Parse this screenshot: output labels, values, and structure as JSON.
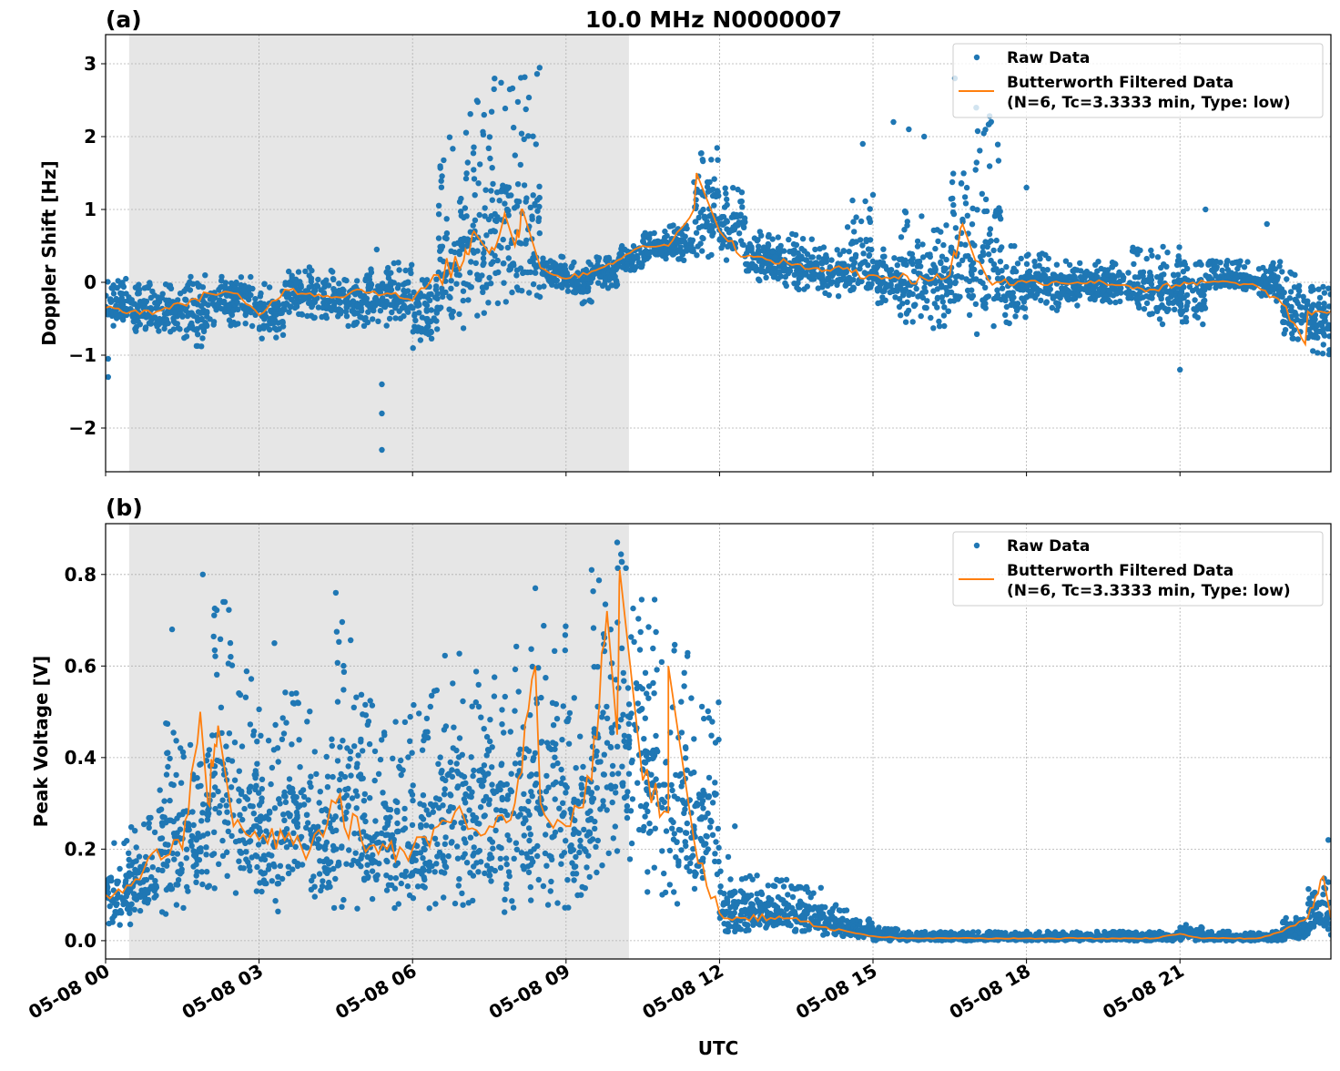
{
  "title": "10.0 MHz N0000007",
  "xlabel": "UTC",
  "x_tick_labels": [
    "05-08 00",
    "05-08 03",
    "05-08 06",
    "05-08 09",
    "05-08 12",
    "05-08 15",
    "05-08 18",
    "05-08 21"
  ],
  "x_ticks_hours": [
    0,
    3,
    6,
    9,
    12,
    15,
    18,
    21
  ],
  "xlim_hours": [
    0,
    23.95
  ],
  "shaded_region_hours": [
    0.46,
    10.23
  ],
  "colors": {
    "raw": "#1f77b4",
    "filtered": "#ff7f0e",
    "shade": "#e6e6e6",
    "grid": "#b0b0b0"
  },
  "legend": {
    "raw": "Raw Data",
    "filtered_line1": "Butterworth Filtered Data",
    "filtered_line2": "(N=6, Tc=3.3333 min, Type: low)",
    "placement": "top-right"
  },
  "chart_data": [
    {
      "type": "scatter",
      "panel_label": "(a)",
      "ylabel": "Doppler Shift [Hz]",
      "ylim": [
        -2.6,
        3.4
      ],
      "y_ticks": [
        -2,
        -1,
        0,
        1,
        2,
        3
      ],
      "y_tick_labels": [
        "−2",
        "−1",
        "0",
        "1",
        "2",
        "3"
      ],
      "grid": true,
      "x_hours": [
        0,
        0.5,
        1,
        1.5,
        2,
        2.5,
        3,
        3.5,
        4,
        4.5,
        5,
        5.5,
        6,
        6.5,
        7,
        7.5,
        8,
        8.5,
        9,
        9.5,
        10,
        10.5,
        11,
        11.5,
        12,
        12.5,
        13,
        13.5,
        14,
        14.5,
        15,
        15.5,
        16,
        16.5,
        17,
        17.5,
        18,
        18.5,
        19,
        19.5,
        20,
        20.5,
        21,
        21.5,
        22,
        22.5,
        23,
        23.5
      ],
      "filtered": [
        -0.35,
        -0.4,
        -0.4,
        -0.3,
        -0.15,
        -0.15,
        -0.45,
        -0.1,
        -0.15,
        -0.2,
        -0.1,
        -0.15,
        -0.25,
        0.1,
        0.3,
        0.4,
        0.5,
        0.2,
        0.05,
        0.15,
        0.3,
        0.5,
        0.5,
        1.0,
        0.7,
        0.35,
        0.3,
        0.25,
        0.15,
        0.2,
        0.1,
        0.05,
        0.05,
        0.1,
        0.3,
        0.0,
        0.0,
        0.0,
        0.0,
        0.0,
        -0.05,
        -0.1,
        -0.05,
        0.0,
        0.0,
        -0.05,
        -0.3,
        -0.4
      ],
      "raw_low": [
        -0.6,
        -0.7,
        -0.7,
        -0.9,
        -0.6,
        -0.6,
        -0.8,
        -0.5,
        -0.5,
        -0.6,
        -0.6,
        -0.5,
        -1.0,
        -0.9,
        -0.5,
        -0.3,
        -0.2,
        -0.1,
        -0.3,
        -0.1,
        0.15,
        0.3,
        0.3,
        0.3,
        0.3,
        0.0,
        -0.05,
        -0.1,
        -0.2,
        -0.3,
        -0.3,
        -0.6,
        -0.7,
        -0.5,
        -0.8,
        -0.6,
        -0.3,
        -0.4,
        -0.3,
        -0.3,
        -0.5,
        -0.6,
        -0.6,
        -0.1,
        -0.1,
        -0.3,
        -0.8,
        -1.0
      ],
      "raw_high": [
        0.05,
        0.0,
        0.0,
        0.1,
        0.1,
        0.15,
        0.0,
        0.25,
        0.2,
        0.1,
        0.25,
        0.3,
        0.1,
        2.0,
        2.5,
        3.0,
        3.0,
        0.4,
        0.3,
        0.35,
        0.5,
        0.7,
        0.8,
        1.9,
        1.3,
        0.8,
        0.7,
        0.6,
        0.5,
        1.3,
        0.5,
        1.0,
        0.8,
        1.5,
        2.4,
        0.5,
        0.4,
        0.3,
        0.3,
        0.3,
        0.5,
        0.5,
        0.3,
        0.3,
        0.3,
        0.3,
        0.2,
        0.0
      ],
      "filtered_peaks": [
        [
          7.2,
          0.7
        ],
        [
          7.8,
          0.95
        ],
        [
          8.15,
          1.0
        ],
        [
          11.55,
          1.5
        ],
        [
          16.75,
          0.8
        ],
        [
          23.45,
          -0.85
        ]
      ],
      "outliers": [
        [
          0.05,
          -1.3
        ],
        [
          0.05,
          -1.05
        ],
        [
          5.4,
          -1.4
        ],
        [
          5.4,
          -1.8
        ],
        [
          5.4,
          -2.3
        ],
        [
          5.3,
          0.45
        ],
        [
          14.8,
          1.9
        ],
        [
          15.4,
          2.2
        ],
        [
          15.7,
          2.1
        ],
        [
          16.0,
          2.0
        ],
        [
          21.0,
          -1.2
        ],
        [
          22.7,
          0.8
        ],
        [
          21.5,
          1.0
        ],
        [
          18.0,
          1.3
        ],
        [
          16.6,
          2.8
        ]
      ]
    },
    {
      "type": "scatter",
      "panel_label": "(b)",
      "ylabel": "Peak Voltage [V]",
      "ylim": [
        -0.04,
        0.911
      ],
      "y_ticks": [
        0,
        0.2,
        0.4,
        0.6,
        0.8
      ],
      "y_tick_labels": [
        "0.0",
        "0.2",
        "0.4",
        "0.6",
        "0.8"
      ],
      "grid": true,
      "x_hours": [
        0,
        0.5,
        1,
        1.5,
        2,
        2.5,
        3,
        3.5,
        4,
        4.5,
        5,
        5.5,
        6,
        6.5,
        7,
        7.5,
        8,
        8.5,
        9,
        9.5,
        10,
        10.5,
        11,
        11.5,
        12,
        12.5,
        13,
        13.5,
        14,
        14.5,
        15,
        15.5,
        16,
        16.5,
        17,
        17.5,
        18,
        18.5,
        19,
        19.5,
        20,
        20.5,
        21,
        21.5,
        22,
        22.5,
        23,
        23.5
      ],
      "filtered": [
        0.1,
        0.12,
        0.2,
        0.2,
        0.3,
        0.25,
        0.22,
        0.22,
        0.2,
        0.3,
        0.22,
        0.2,
        0.2,
        0.25,
        0.27,
        0.25,
        0.3,
        0.3,
        0.25,
        0.35,
        0.45,
        0.35,
        0.28,
        0.22,
        0.06,
        0.05,
        0.05,
        0.05,
        0.03,
        0.02,
        0.01,
        0.005,
        0.005,
        0.005,
        0.005,
        0.005,
        0.005,
        0.005,
        0.005,
        0.005,
        0.005,
        0.005,
        0.015,
        0.005,
        0.005,
        0.005,
        0.02,
        0.05
      ],
      "raw_low": [
        0.03,
        0.05,
        0.05,
        0.06,
        0.07,
        0.08,
        0.06,
        0.08,
        0.06,
        0.07,
        0.07,
        0.06,
        0.06,
        0.07,
        0.06,
        0.06,
        0.06,
        0.07,
        0.06,
        0.08,
        0.15,
        0.1,
        0.08,
        0.08,
        0.02,
        0.02,
        0.02,
        0.02,
        0.01,
        0.005,
        0.0,
        0.0,
        0.0,
        0.0,
        0.0,
        0.0,
        0.0,
        0.0,
        0.0,
        0.0,
        0.0,
        0.0,
        0.0,
        0.0,
        0.0,
        0.0,
        0.0,
        0.01
      ],
      "raw_high": [
        0.22,
        0.28,
        0.5,
        0.45,
        0.75,
        0.6,
        0.5,
        0.55,
        0.45,
        0.7,
        0.55,
        0.5,
        0.55,
        0.65,
        0.6,
        0.6,
        0.65,
        0.75,
        0.55,
        0.8,
        0.86,
        0.75,
        0.65,
        0.55,
        0.2,
        0.15,
        0.14,
        0.12,
        0.08,
        0.05,
        0.03,
        0.02,
        0.02,
        0.02,
        0.02,
        0.02,
        0.02,
        0.02,
        0.02,
        0.02,
        0.02,
        0.02,
        0.035,
        0.02,
        0.02,
        0.02,
        0.05,
        0.15
      ],
      "filtered_peaks": [
        [
          1.85,
          0.5
        ],
        [
          2.2,
          0.47
        ],
        [
          8.4,
          0.6
        ],
        [
          9.8,
          0.72
        ],
        [
          10.05,
          0.81
        ],
        [
          11.0,
          0.6
        ],
        [
          23.8,
          0.14
        ]
      ],
      "outliers": [
        [
          1.3,
          0.68
        ],
        [
          1.9,
          0.8
        ],
        [
          2.3,
          0.74
        ],
        [
          3.3,
          0.65
        ],
        [
          4.5,
          0.76
        ],
        [
          8.4,
          0.77
        ],
        [
          9.5,
          0.81
        ],
        [
          10.0,
          0.87
        ],
        [
          12.3,
          0.25
        ],
        [
          23.9,
          0.22
        ]
      ]
    }
  ]
}
